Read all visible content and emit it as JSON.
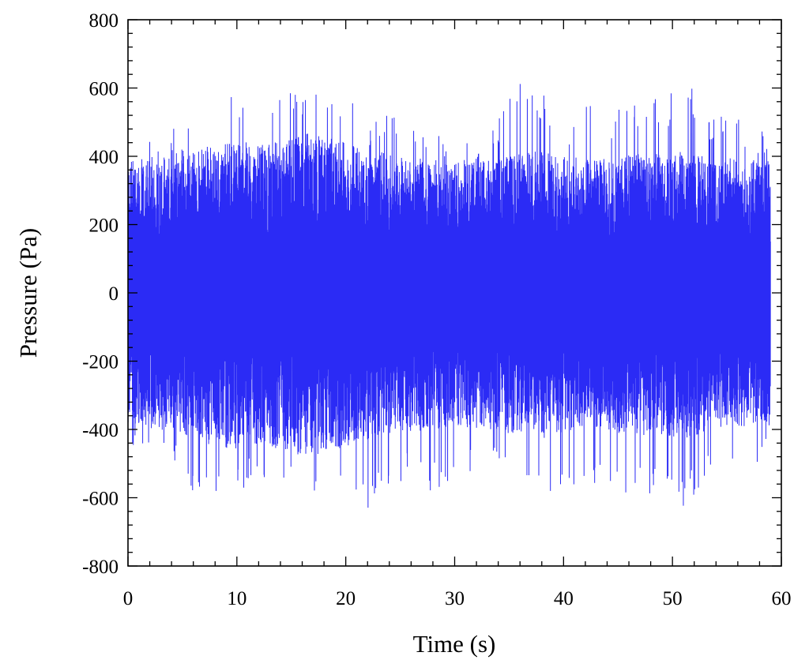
{
  "chart_data": {
    "type": "line",
    "title": "",
    "xlabel": "Time (s)",
    "ylabel": "Pressure (Pa)",
    "xlim": [
      0,
      60
    ],
    "ylim": [
      -800,
      800
    ],
    "x_ticks": [
      "0",
      "10",
      "20",
      "30",
      "40",
      "50",
      "60"
    ],
    "y_ticks": [
      "800",
      "600",
      "400",
      "200",
      "0",
      "-200",
      "-400",
      "-600",
      "-800"
    ],
    "grid": false,
    "legend": "none",
    "series": [
      {
        "color": "#2b2bf5",
        "description_envelope": {
          "x": [
            0,
            2,
            5,
            8,
            10,
            12,
            15,
            16,
            18,
            20,
            21.3,
            22,
            25,
            28,
            30,
            33,
            36.3,
            38,
            40,
            43,
            45,
            48,
            50,
            51.4,
            53,
            55,
            57,
            59
          ],
          "upper_peak": [
            505,
            455,
            500,
            630,
            630,
            505,
            620,
            625,
            580,
            600,
            670,
            520,
            575,
            500,
            450,
            455,
            640,
            605,
            520,
            565,
            545,
            600,
            585,
            670,
            500,
            540,
            490,
            495
          ],
          "lower_peak": [
            -480,
            -465,
            -550,
            -665,
            -595,
            -560,
            -560,
            -585,
            -590,
            -620,
            -625,
            -645,
            -560,
            -580,
            -545,
            -505,
            -640,
            -620,
            -575,
            -575,
            -585,
            -590,
            -590,
            -655,
            -540,
            -515,
            -595,
            -455
          ],
          "upper_band": [
            400,
            390,
            410,
            440,
            450,
            430,
            460,
            470,
            460,
            440,
            430,
            420,
            400,
            390,
            380,
            390,
            410,
            420,
            400,
            390,
            400,
            410,
            410,
            420,
            400,
            400,
            390,
            390
          ],
          "lower_band": [
            -380,
            -390,
            -420,
            -450,
            -460,
            -440,
            -470,
            -480,
            -470,
            -450,
            -440,
            -430,
            -410,
            -400,
            -390,
            -400,
            -420,
            -430,
            -410,
            -400,
            -410,
            -420,
            -420,
            -430,
            -410,
            -400,
            -390,
            -390
          ]
        }
      }
    ]
  }
}
